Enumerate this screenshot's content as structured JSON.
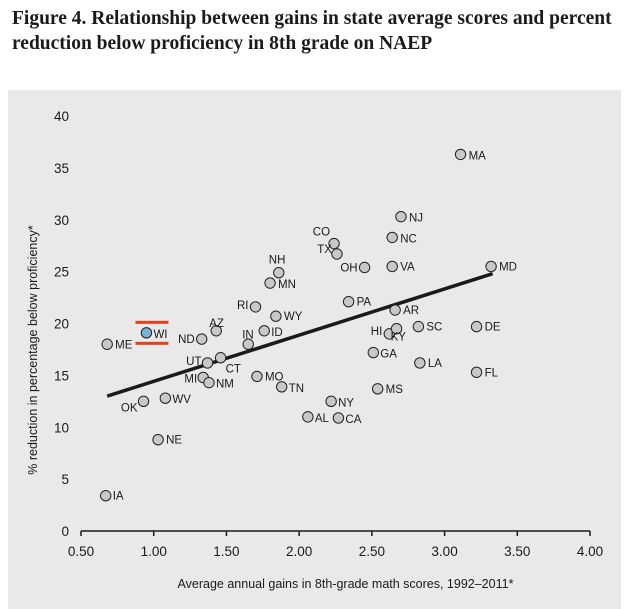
{
  "title": "Figure 4. Relationship between gains in state average scores and percent reduction below proficiency in 8th grade on NAEP",
  "chart_data": {
    "type": "scatter",
    "title": "Figure 4. Relationship between gains in state average scores and percent reduction below proficiency in 8th grade on NAEP",
    "xlabel": "Average annual gains in 8th-grade math scores, 1992–2011*",
    "ylabel": "% reduction in percentage below proficiency*",
    "xlim": [
      0.5,
      4.0
    ],
    "ylim": [
      0,
      40
    ],
    "xticks": [
      "0.50",
      "1.00",
      "1.50",
      "2.00",
      "2.50",
      "3.00",
      "3.50",
      "4.00"
    ],
    "yticks": [
      "0",
      "5",
      "10",
      "15",
      "20",
      "25",
      "30",
      "35",
      "40"
    ],
    "grid": false,
    "colors": {
      "point": "#c8c8c8",
      "highlight": "#7ab3d8",
      "highlight_marker": "#e8401c",
      "trend": "#1a1a1a"
    },
    "trendline": {
      "x": [
        0.68,
        3.33
      ],
      "y": [
        13.0,
        24.8
      ]
    },
    "highlight": "WI",
    "points": [
      {
        "label": "MA",
        "x": 3.11,
        "y": 36.3
      },
      {
        "label": "NJ",
        "x": 2.7,
        "y": 30.3
      },
      {
        "label": "NC",
        "x": 2.64,
        "y": 28.3
      },
      {
        "label": "CO",
        "x": 2.24,
        "y": 27.7
      },
      {
        "label": "TX",
        "x": 2.26,
        "y": 26.7
      },
      {
        "label": "OH",
        "x": 2.45,
        "y": 25.4
      },
      {
        "label": "VA",
        "x": 2.64,
        "y": 25.5
      },
      {
        "label": "MD",
        "x": 3.32,
        "y": 25.5
      },
      {
        "label": "NH",
        "x": 1.86,
        "y": 24.9
      },
      {
        "label": "MN",
        "x": 1.8,
        "y": 23.9
      },
      {
        "label": "PA",
        "x": 2.34,
        "y": 22.1
      },
      {
        "label": "RI",
        "x": 1.7,
        "y": 21.6
      },
      {
        "label": "AR",
        "x": 2.66,
        "y": 21.3
      },
      {
        "label": "WY",
        "x": 1.84,
        "y": 20.7
      },
      {
        "label": "AZ",
        "x": 1.43,
        "y": 19.3
      },
      {
        "label": "WI",
        "x": 0.95,
        "y": 19.1
      },
      {
        "label": "ID",
        "x": 1.76,
        "y": 19.3
      },
      {
        "label": "SC",
        "x": 2.82,
        "y": 19.7
      },
      {
        "label": "DE",
        "x": 3.22,
        "y": 19.7
      },
      {
        "label": "HI",
        "x": 2.62,
        "y": 19.0
      },
      {
        "label": "KY",
        "x": 2.67,
        "y": 19.5
      },
      {
        "label": "ND",
        "x": 1.33,
        "y": 18.5
      },
      {
        "label": "IN",
        "x": 1.65,
        "y": 18.0
      },
      {
        "label": "ME",
        "x": 0.68,
        "y": 18.0
      },
      {
        "label": "GA",
        "x": 2.51,
        "y": 17.2
      },
      {
        "label": "UT",
        "x": 1.37,
        "y": 16.2
      },
      {
        "label": "CT",
        "x": 1.46,
        "y": 16.7
      },
      {
        "label": "LA",
        "x": 2.83,
        "y": 16.2
      },
      {
        "label": "FL",
        "x": 3.22,
        "y": 15.3
      },
      {
        "label": "MO",
        "x": 1.71,
        "y": 14.9
      },
      {
        "label": "MI",
        "x": 1.34,
        "y": 14.8
      },
      {
        "label": "NM",
        "x": 1.38,
        "y": 14.3
      },
      {
        "label": "TN",
        "x": 1.88,
        "y": 13.9
      },
      {
        "label": "MS",
        "x": 2.54,
        "y": 13.7
      },
      {
        "label": "WV",
        "x": 1.08,
        "y": 12.8
      },
      {
        "label": "OK",
        "x": 0.93,
        "y": 12.5
      },
      {
        "label": "NY",
        "x": 2.22,
        "y": 12.5
      },
      {
        "label": "AL",
        "x": 2.06,
        "y": 11.0
      },
      {
        "label": "CA",
        "x": 2.27,
        "y": 10.9
      },
      {
        "label": "NE",
        "x": 1.03,
        "y": 8.8
      },
      {
        "label": "IA",
        "x": 0.67,
        "y": 3.4
      }
    ]
  }
}
